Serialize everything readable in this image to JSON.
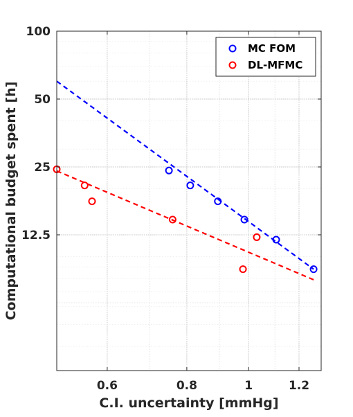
{
  "chart_data": {
    "type": "scatter",
    "xlabel": "C.I. uncertainty [mmHg]",
    "ylabel": "Computational budget spent [h]",
    "xscale": "log",
    "yscale": "log",
    "xlim": [
      0.5,
      1.3
    ],
    "ylim": [
      3.125,
      100
    ],
    "xticks": [
      0.6,
      0.8,
      1.0,
      1.2
    ],
    "xtick_labels": [
      "0.6",
      "0.8",
      "1",
      "1.2"
    ],
    "yticks": [
      12.5,
      25,
      50,
      100
    ],
    "ytick_labels": [
      "12.5",
      "25",
      "50",
      "100"
    ],
    "grid": true,
    "legend_position": "top-right",
    "series": [
      {
        "name": "MC FOM",
        "color": "#0000ff",
        "marker": "circle",
        "points": [
          {
            "x": 0.75,
            "y": 24.1
          },
          {
            "x": 0.81,
            "y": 20.7
          },
          {
            "x": 0.895,
            "y": 17.6
          },
          {
            "x": 0.985,
            "y": 14.6
          },
          {
            "x": 1.105,
            "y": 11.9
          },
          {
            "x": 1.265,
            "y": 8.8
          }
        ],
        "trend": {
          "x": [
            0.5,
            1.265
          ],
          "y": [
            60.0,
            8.8
          ]
        }
      },
      {
        "name": "DL-MFMC",
        "color": "#ff0000",
        "marker": "circle",
        "points": [
          {
            "x": 0.5,
            "y": 24.4
          },
          {
            "x": 0.553,
            "y": 20.7
          },
          {
            "x": 0.568,
            "y": 17.6
          },
          {
            "x": 0.76,
            "y": 14.6
          },
          {
            "x": 0.98,
            "y": 8.8
          },
          {
            "x": 1.03,
            "y": 12.2
          }
        ],
        "trend": {
          "x": [
            0.5,
            1.265
          ],
          "y": [
            24.0,
            7.9
          ]
        }
      }
    ]
  }
}
